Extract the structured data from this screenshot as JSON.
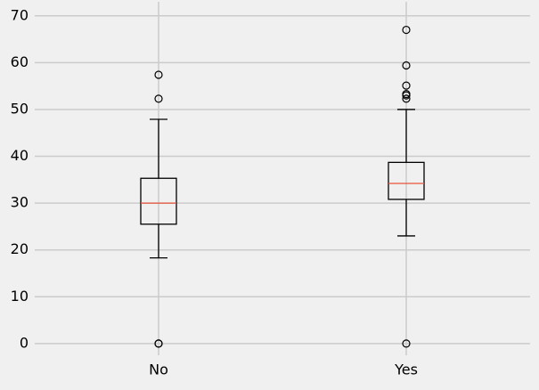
{
  "chart_data": {
    "type": "box",
    "categories": [
      "No",
      "Yes"
    ],
    "boxes": [
      {
        "low": 18.3,
        "q1": 25.5,
        "median": 30,
        "q3": 35.3,
        "high": 47.9,
        "outliers": [
          0,
          0,
          52.3,
          57.4
        ]
      },
      {
        "low": 23,
        "q1": 30.8,
        "median": 34.2,
        "q3": 38.7,
        "high": 50,
        "outliers": [
          0,
          52.3,
          53,
          53.3,
          55.1,
          59.4,
          67
        ]
      }
    ],
    "box_color": "#000000",
    "median_color": "#e5533a",
    "ylim": [
      -2.5,
      73
    ],
    "yticks": [
      0,
      10,
      20,
      30,
      40,
      50,
      60,
      70
    ],
    "grid": true
  }
}
